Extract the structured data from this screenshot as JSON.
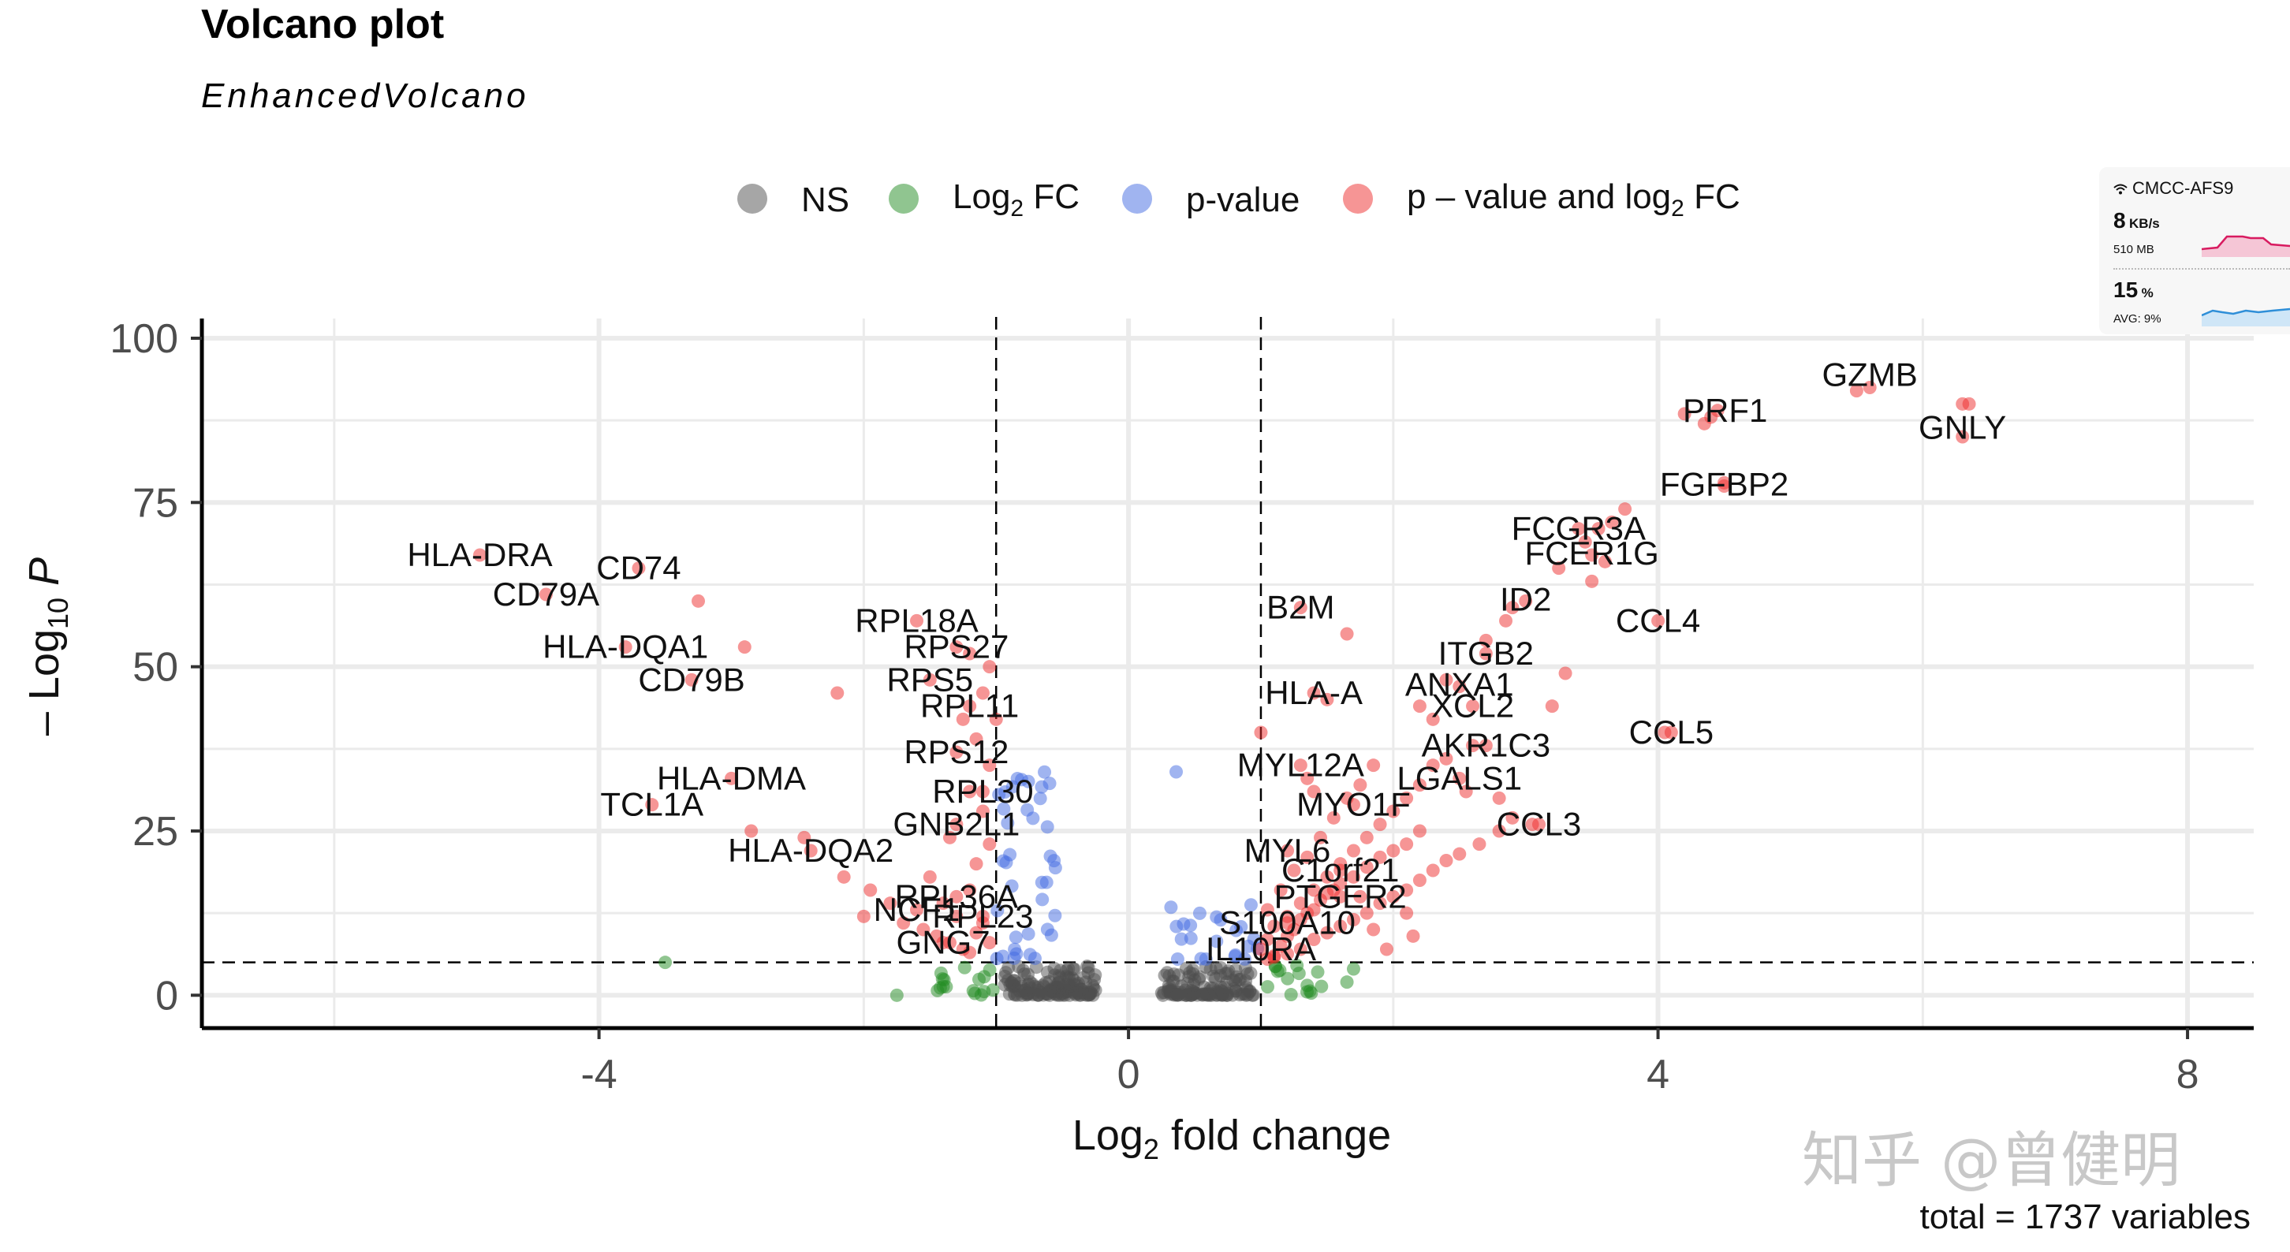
{
  "title": "Volcano plot",
  "subtitle": "EnhancedVolcano",
  "caption": "total = 1737 variables",
  "watermark": "知乎 @曾健明",
  "legend": {
    "items": [
      {
        "key": "ns",
        "label": "NS",
        "color": "#4d4d4d"
      },
      {
        "key": "log2fc",
        "label_main": "Log",
        "label_sub": "2",
        "label_tail": " FC",
        "color": "#228b22"
      },
      {
        "key": "pvalue",
        "label": "p-value",
        "color": "#4169e1"
      },
      {
        "key": "both",
        "label_main": "p – value and log",
        "label_sub": "2",
        "label_tail": " FC",
        "color": "#ee2c2c"
      }
    ]
  },
  "status_widget": {
    "network": "CMCC-AFS9",
    "speed_value": "8",
    "speed_unit": "KB/s",
    "memory": "510 MB",
    "cpu_value": "15",
    "cpu_unit": "%",
    "cpu_avg": "AVG: 9%"
  },
  "chart_data": {
    "type": "scatter",
    "title": "Volcano plot",
    "subtitle": "EnhancedVolcano",
    "xlabel_main": "Log",
    "xlabel_sub": "2",
    "xlabel_tail": " fold change",
    "ylabel_prefix": "– Log",
    "ylabel_sub": "10",
    "ylabel_tail": " P",
    "xlim": [
      -7,
      8.5
    ],
    "ylim": [
      -5,
      103
    ],
    "x_ticks": [
      -4,
      0,
      4,
      8
    ],
    "x_tick_labels": [
      "-4",
      "0",
      "4",
      "8"
    ],
    "y_ticks": [
      0,
      25,
      50,
      75,
      100
    ],
    "y_tick_labels": [
      "0",
      "25",
      "50",
      "75",
      "100"
    ],
    "fc_cutoff": 1,
    "p_cutoff_neglog10": 5,
    "grid": true,
    "legend_position": "top",
    "colors": {
      "NS": "#4d4d4d",
      "Log2FC": "#228b22",
      "p-value": "#4169e1",
      "both": "#ee2c2c"
    },
    "labeled_genes": [
      {
        "gene": "GZMB",
        "x": 5.6,
        "y": 92.5
      },
      {
        "gene": "PRF1",
        "x": 4.4,
        "y": 88
      },
      {
        "gene": "GNLY",
        "x": 6.3,
        "y": 90
      },
      {
        "gene": "FGFBP2",
        "x": 4.5,
        "y": 77.5
      },
      {
        "gene": "FCGR3A",
        "x": 3.4,
        "y": 71
      },
      {
        "gene": "FCER1G",
        "x": 3.5,
        "y": 67
      },
      {
        "gene": "ID2",
        "x": 3.0,
        "y": 60
      },
      {
        "gene": "CCL4",
        "x": 4.0,
        "y": 57
      },
      {
        "gene": "B2M",
        "x": 1.3,
        "y": 59
      },
      {
        "gene": "ITGB2",
        "x": 2.7,
        "y": 52
      },
      {
        "gene": "ANXA1",
        "x": 2.5,
        "y": 47
      },
      {
        "gene": "HLA-A",
        "x": 1.4,
        "y": 46
      },
      {
        "gene": "XCL2",
        "x": 2.6,
        "y": 44
      },
      {
        "gene": "CCL5",
        "x": 4.1,
        "y": 40
      },
      {
        "gene": "AKR1C3",
        "x": 2.7,
        "y": 38
      },
      {
        "gene": "MYL12A",
        "x": 1.3,
        "y": 35
      },
      {
        "gene": "LGALS1",
        "x": 2.5,
        "y": 33
      },
      {
        "gene": "MYO1F",
        "x": 1.7,
        "y": 29
      },
      {
        "gene": "CCL3",
        "x": 3.1,
        "y": 26
      },
      {
        "gene": "MYL6",
        "x": 1.2,
        "y": 22
      },
      {
        "gene": "C1orf21",
        "x": 1.6,
        "y": 19
      },
      {
        "gene": "PTGER2",
        "x": 1.6,
        "y": 15
      },
      {
        "gene": "S100A10",
        "x": 1.2,
        "y": 11
      },
      {
        "gene": "IL10RA",
        "x": 1.0,
        "y": 7
      },
      {
        "gene": "HLA-DRA",
        "x": -4.9,
        "y": 67
      },
      {
        "gene": "CD74",
        "x": -3.7,
        "y": 65
      },
      {
        "gene": "CD79A",
        "x": -4.4,
        "y": 61
      },
      {
        "gene": "HLA-DQA1",
        "x": -3.8,
        "y": 53
      },
      {
        "gene": "CD79B",
        "x": -3.3,
        "y": 48
      },
      {
        "gene": "RPL18A",
        "x": -1.6,
        "y": 57
      },
      {
        "gene": "RPS27",
        "x": -1.3,
        "y": 53
      },
      {
        "gene": "RPS5",
        "x": -1.5,
        "y": 48
      },
      {
        "gene": "RPL11",
        "x": -1.2,
        "y": 44
      },
      {
        "gene": "RPS12",
        "x": -1.3,
        "y": 37
      },
      {
        "gene": "RPL30",
        "x": -1.1,
        "y": 31
      },
      {
        "gene": "GNB2L1",
        "x": -1.3,
        "y": 26
      },
      {
        "gene": "HLA-DMA",
        "x": -3.0,
        "y": 33
      },
      {
        "gene": "TCL1A",
        "x": -3.6,
        "y": 29
      },
      {
        "gene": "HLA-DQA2",
        "x": -2.4,
        "y": 22
      },
      {
        "gene": "RPL36A",
        "x": -1.3,
        "y": 15
      },
      {
        "gene": "NCF1",
        "x": -1.6,
        "y": 13
      },
      {
        "gene": "RPL23",
        "x": -1.1,
        "y": 12
      },
      {
        "gene": "GNG7",
        "x": -1.4,
        "y": 8
      }
    ],
    "extra_points_red": [
      [
        -3.25,
        60
      ],
      [
        -2.9,
        53
      ],
      [
        -2.2,
        46
      ],
      [
        -2.85,
        25
      ],
      [
        -2.15,
        18
      ],
      [
        -1.95,
        16
      ],
      [
        -1.8,
        14
      ],
      [
        -1.7,
        11
      ],
      [
        -1.55,
        10
      ],
      [
        -1.45,
        9
      ],
      [
        -1.35,
        8
      ],
      [
        -1.25,
        7
      ],
      [
        -1.2,
        6.5
      ],
      [
        -1.15,
        9.5
      ],
      [
        -1.1,
        11
      ],
      [
        -1.05,
        8
      ],
      [
        -1.3,
        12
      ],
      [
        -1.4,
        14
      ],
      [
        -1.2,
        16
      ],
      [
        -1.15,
        20
      ],
      [
        -1.05,
        23
      ],
      [
        -1.35,
        24
      ],
      [
        -1.1,
        28
      ],
      [
        -1.2,
        31
      ],
      [
        -1.05,
        35
      ],
      [
        -1.15,
        39
      ],
      [
        -1.0,
        42
      ],
      [
        -1.25,
        42
      ],
      [
        -1.1,
        46
      ],
      [
        -1.05,
        50
      ],
      [
        -1.2,
        52
      ],
      [
        -2.45,
        24
      ],
      [
        -2.0,
        12
      ],
      [
        -1.5,
        18
      ],
      [
        1.1,
        6
      ],
      [
        1.15,
        7.5
      ],
      [
        1.2,
        9
      ],
      [
        1.25,
        10
      ],
      [
        1.3,
        11.5
      ],
      [
        1.35,
        12.5
      ],
      [
        1.4,
        13
      ],
      [
        1.45,
        14.5
      ],
      [
        1.5,
        15.5
      ],
      [
        1.55,
        16
      ],
      [
        1.6,
        17
      ],
      [
        1.7,
        18
      ],
      [
        1.8,
        19.5
      ],
      [
        1.9,
        21
      ],
      [
        2.0,
        22
      ],
      [
        2.1,
        23
      ],
      [
        2.2,
        25
      ],
      [
        1.05,
        8.5
      ],
      [
        1.1,
        10.5
      ],
      [
        1.2,
        12
      ],
      [
        1.3,
        14
      ],
      [
        1.4,
        16
      ],
      [
        1.5,
        18
      ],
      [
        1.6,
        20
      ],
      [
        1.7,
        22
      ],
      [
        1.8,
        24
      ],
      [
        1.9,
        26
      ],
      [
        2.0,
        28
      ],
      [
        2.1,
        30
      ],
      [
        2.2,
        32
      ],
      [
        2.3,
        35
      ],
      [
        2.4,
        36
      ],
      [
        2.6,
        38
      ],
      [
        1.05,
        13
      ],
      [
        1.15,
        16
      ],
      [
        1.25,
        19
      ],
      [
        1.35,
        21
      ],
      [
        1.45,
        24
      ],
      [
        1.55,
        27
      ],
      [
        1.65,
        30
      ],
      [
        1.75,
        32
      ],
      [
        1.85,
        35
      ],
      [
        1.4,
        31
      ],
      [
        1.35,
        33
      ],
      [
        1.05,
        5.5
      ],
      [
        1.1,
        5.8
      ],
      [
        1.2,
        6.3
      ],
      [
        1.3,
        7
      ],
      [
        1.4,
        8.5
      ],
      [
        1.5,
        9.5
      ],
      [
        1.6,
        10.5
      ],
      [
        1.7,
        11.5
      ],
      [
        1.8,
        12.5
      ],
      [
        1.9,
        14
      ],
      [
        2.0,
        15
      ],
      [
        2.1,
        16
      ],
      [
        2.2,
        17.5
      ],
      [
        2.3,
        19
      ],
      [
        2.4,
        20.5
      ],
      [
        2.5,
        21.5
      ],
      [
        2.65,
        23
      ],
      [
        2.8,
        25
      ],
      [
        2.9,
        27
      ],
      [
        3.3,
        49
      ],
      [
        3.2,
        44
      ],
      [
        2.3,
        42
      ],
      [
        2.2,
        44
      ],
      [
        2.4,
        48
      ],
      [
        2.7,
        54
      ],
      [
        2.85,
        57
      ],
      [
        1.5,
        45
      ],
      [
        1.0,
        40
      ],
      [
        1.65,
        55
      ],
      [
        3.55,
        71
      ],
      [
        3.65,
        72
      ],
      [
        3.75,
        74
      ],
      [
        3.45,
        69
      ],
      [
        3.6,
        66
      ],
      [
        3.5,
        63
      ],
      [
        3.25,
        65
      ],
      [
        2.9,
        59
      ],
      [
        4.2,
        88.5
      ],
      [
        4.35,
        87
      ],
      [
        4.45,
        89
      ],
      [
        5.5,
        92
      ],
      [
        6.3,
        85
      ],
      [
        6.35,
        90
      ],
      [
        4.5,
        78
      ],
      [
        4.05,
        40
      ],
      [
        3.05,
        26
      ],
      [
        2.8,
        30
      ],
      [
        2.55,
        31
      ],
      [
        2.15,
        9
      ],
      [
        1.95,
        7
      ],
      [
        1.85,
        10
      ],
      [
        2.1,
        12.5
      ],
      [
        1.75,
        15
      ]
    ]
  }
}
